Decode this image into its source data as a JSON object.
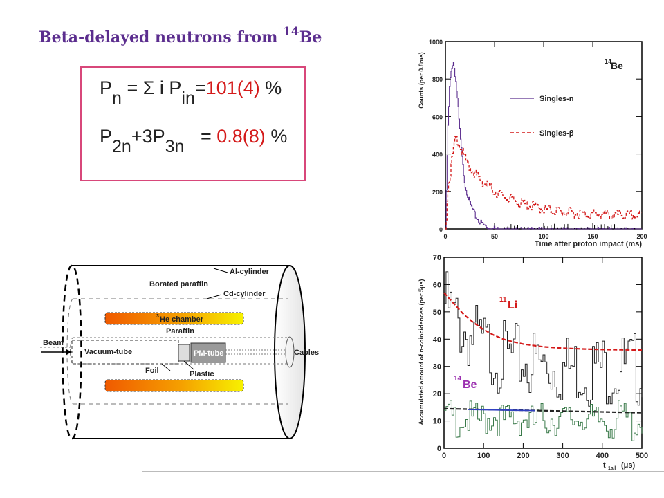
{
  "slide": {
    "title_main": "Beta-delayed neutrons from ",
    "title_sup": "14",
    "title_end": "Be"
  },
  "equations": {
    "line1_P": "P",
    "line1_sub_n": "n",
    "line1_mid": "= Σ i P",
    "line1_sub_in": "in",
    "line1_eq": "=",
    "line1_value": "101(4)",
    "line1_pct": "%",
    "line2_P": "P",
    "line2_sub_2n": "2n",
    "line2_mid": "+3P",
    "line2_sub_3n": "3n",
    "line2_eq": "=",
    "line2_value": "0.8(8)",
    "line2_pct": "%",
    "value_color": "#d41a1a"
  },
  "detector": {
    "labels": {
      "al_cylinder": "Al-cylinder",
      "borated_paraffin": "Borated paraffin",
      "cd_cylinder": "Cd-cylinder",
      "he_sup": "3",
      "he_chamber": "He chamber",
      "paraffin": "Paraffin",
      "beam": "Beam",
      "vacuum_tube": "Vacuum-tube",
      "pm_tube": "PM-tube",
      "cables": "Cables",
      "foil": "Foil",
      "plastic": "Plastic"
    }
  },
  "chart_data": [
    {
      "type": "line",
      "title_sup": "14",
      "title": "Be",
      "xlabel": "Time after proton impact (ms)",
      "ylabel": "Counts (per 0.8ms)",
      "xlim": [
        0,
        200
      ],
      "ylim": [
        0,
        1000
      ],
      "xticks": [
        "0",
        "50",
        "100",
        "150",
        "200"
      ],
      "yticks": [
        "0",
        "200",
        "400",
        "600",
        "800",
        "1000"
      ],
      "legend_position": "middle-right",
      "series": [
        {
          "name": "Singles-n",
          "color": "#5b2d8e",
          "style": "solid",
          "x": [
            0,
            2,
            4,
            6,
            8,
            10,
            12,
            14,
            16,
            18,
            20,
            25,
            30,
            35,
            40,
            45,
            50,
            55,
            60,
            70,
            80
          ],
          "y": [
            0,
            500,
            760,
            870,
            900,
            820,
            700,
            560,
            430,
            320,
            240,
            140,
            80,
            45,
            25,
            14,
            8,
            5,
            3,
            1,
            0
          ]
        },
        {
          "name": "Singles-β",
          "color": "#d41a1a",
          "style": "dashed",
          "x": [
            0,
            2,
            4,
            6,
            8,
            10,
            12,
            14,
            16,
            18,
            20,
            25,
            30,
            40,
            50,
            60,
            70,
            80,
            100,
            120,
            140,
            160,
            180,
            200
          ],
          "y": [
            0,
            220,
            290,
            360,
            440,
            490,
            490,
            470,
            440,
            410,
            385,
            340,
            305,
            255,
            215,
            185,
            165,
            145,
            120,
            105,
            95,
            90,
            88,
            85
          ]
        }
      ]
    },
    {
      "type": "line",
      "xlabel": "t",
      "xlabel_sub": "1all",
      "xlabel_unit": "(μs)",
      "ylabel": "Accumulated amount of n-coincidences (per 5μs)",
      "xlim": [
        0,
        500
      ],
      "ylim": [
        0,
        70
      ],
      "xticks": [
        "0",
        "100",
        "200",
        "300",
        "400",
        "500"
      ],
      "yticks": [
        "0",
        "10",
        "20",
        "30",
        "40",
        "50",
        "60",
        "70"
      ],
      "annotations": [
        {
          "sup": "11",
          "text": "Li",
          "color": "#d41a1a"
        },
        {
          "sup": "14",
          "text": "Be",
          "color": "#9b30b0"
        }
      ],
      "series": [
        {
          "name": "Li",
          "style": "histogram",
          "color": "#222222",
          "x": [
            0,
            25,
            50,
            75,
            100,
            125,
            150,
            175,
            200,
            225,
            250,
            275,
            300,
            325,
            350,
            375,
            400,
            425,
            450,
            475,
            500
          ],
          "y": [
            60,
            54,
            50,
            47,
            44,
            42,
            40,
            39,
            39,
            38,
            37,
            37,
            36,
            36,
            36,
            36,
            36,
            36,
            36,
            36,
            36
          ]
        },
        {
          "name": "Li fit",
          "style": "dashed",
          "color": "#d41a1a",
          "x": [
            0,
            25,
            50,
            75,
            100,
            125,
            150,
            175,
            200,
            250,
            300,
            350,
            400,
            450,
            500
          ],
          "y": [
            57,
            53,
            49,
            46,
            43.5,
            41.5,
            40,
            39,
            38.2,
            37.2,
            36.7,
            36.4,
            36.2,
            36.1,
            36
          ]
        },
        {
          "name": "Be",
          "style": "histogram",
          "color": "#3a7a4a",
          "x": [
            0,
            25,
            50,
            75,
            100,
            125,
            150,
            175,
            200,
            225,
            250,
            275,
            300,
            325,
            350,
            375,
            400,
            425,
            450,
            475,
            500
          ],
          "y": [
            15,
            14,
            15,
            13,
            14,
            16,
            13,
            14,
            15,
            12,
            14,
            15,
            13,
            14,
            16,
            12,
            14,
            13,
            15,
            12,
            14
          ]
        },
        {
          "name": "Be fit",
          "style": "dashed",
          "color": "#222222",
          "x": [
            0,
            500
          ],
          "y": [
            14.5,
            13
          ]
        }
      ]
    }
  ]
}
